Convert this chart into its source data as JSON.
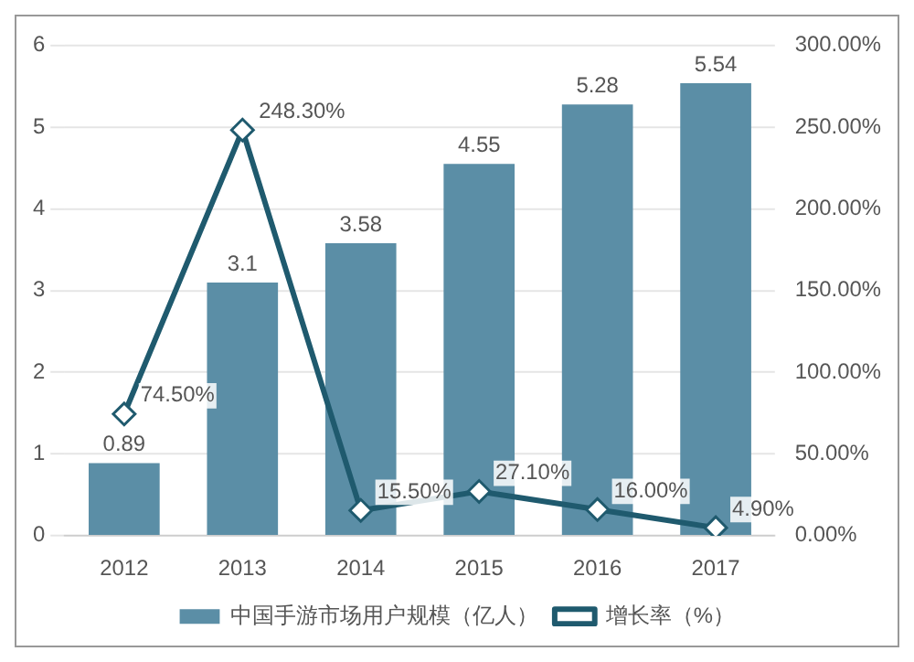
{
  "chart_data": {
    "type": "bar",
    "categories": [
      "2012",
      "2013",
      "2014",
      "2015",
      "2016",
      "2017"
    ],
    "series": [
      {
        "name": "中国手游市场用户规模（亿人）",
        "color": "#5b8ea6",
        "values": [
          0.89,
          3.1,
          3.58,
          4.55,
          5.28,
          5.54
        ],
        "value_labels": [
          "0.89",
          "3.1",
          "3.58",
          "4.55",
          "5.28",
          "5.54"
        ]
      },
      {
        "name": "增长率（%）",
        "type": "line",
        "axis": "y2",
        "color": "#1f5a6e",
        "marker": "diamond",
        "values": [
          74.5,
          248.3,
          15.5,
          27.1,
          16.0,
          4.9
        ],
        "value_labels": [
          "74.50%",
          "248.30%",
          "15.50%",
          "27.10%",
          "16.00%",
          "4.90%"
        ]
      }
    ],
    "ylim": [
      0,
      6
    ],
    "yticks": [
      0,
      1,
      2,
      3,
      4,
      5,
      6
    ],
    "y2lim": [
      0,
      300
    ],
    "y2ticks": [
      {
        "value": 0,
        "label": "0.00%"
      },
      {
        "value": 50,
        "label": "50.00%"
      },
      {
        "value": 100,
        "label": "100.00%"
      },
      {
        "value": 150,
        "label": "150.00%"
      },
      {
        "value": 200,
        "label": "200.00%"
      },
      {
        "value": 250,
        "label": "250.00%"
      },
      {
        "value": 300,
        "label": "300.00%"
      }
    ],
    "grid": "y",
    "legend": "bottom"
  }
}
